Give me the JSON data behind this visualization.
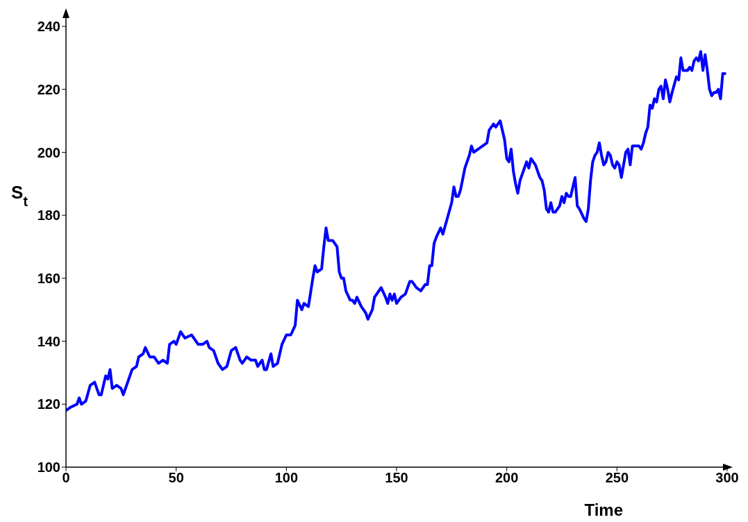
{
  "chart_data": {
    "type": "line",
    "xlabel": "Time",
    "ylabel": "S$_{t}$",
    "xlim": [
      0,
      300
    ],
    "xticks": [
      0,
      50,
      100,
      150,
      200,
      250,
      300
    ],
    "ylim": [
      100,
      240
    ],
    "yticks": [
      100,
      120,
      140,
      160,
      180,
      200,
      220,
      240
    ],
    "grid": false,
    "legend": false,
    "marker": "none",
    "line_style": "solid",
    "series": [
      {
        "color": "#0000ff",
        "x": [
          0,
          2,
          5,
          6,
          7,
          9,
          11,
          13,
          15,
          16,
          18,
          19,
          20,
          21,
          23,
          25,
          26,
          28,
          30,
          32,
          33,
          35,
          36,
          38,
          40,
          42,
          44,
          46,
          47,
          49,
          50,
          51,
          52,
          54,
          57,
          60,
          62,
          64,
          65,
          67,
          69,
          71,
          73,
          75,
          77,
          79,
          80,
          82,
          84,
          86,
          87,
          89,
          90,
          91,
          93,
          94,
          96,
          98,
          100,
          102,
          104,
          105,
          107,
          108,
          110,
          112,
          113,
          114,
          116,
          117,
          118,
          119,
          121,
          123,
          124,
          125,
          126,
          127,
          129,
          130,
          131,
          132,
          134,
          136,
          137,
          139,
          140,
          142,
          143,
          145,
          146,
          147,
          148,
          149,
          150,
          152,
          154,
          156,
          157,
          159,
          161,
          163,
          164,
          165,
          166,
          167,
          168,
          170,
          171,
          173,
          175,
          176,
          177,
          178,
          179,
          181,
          183,
          184,
          185,
          187,
          189,
          191,
          192,
          194,
          195,
          197,
          198,
          199,
          200,
          201,
          202,
          203,
          204,
          205,
          206,
          208,
          209,
          210,
          211,
          213,
          214,
          215,
          216,
          217,
          218,
          219,
          220,
          221,
          222,
          224,
          225,
          226,
          227,
          228,
          229,
          230,
          231,
          232,
          233,
          235,
          236,
          237,
          238,
          239,
          240,
          241,
          242,
          243,
          244,
          245,
          246,
          247,
          248,
          249,
          250,
          251,
          252,
          253,
          254,
          255,
          256,
          257,
          258,
          260,
          261,
          262,
          263,
          264,
          265,
          266,
          267,
          268,
          269,
          270,
          271,
          272,
          273,
          274,
          275,
          277,
          278,
          279,
          280,
          282,
          283,
          284,
          285,
          286,
          287,
          288,
          289,
          290,
          291,
          292,
          293,
          294,
          295,
          296,
          297,
          298,
          299
        ],
        "values": [
          118,
          119,
          120,
          122,
          120,
          121,
          126,
          127,
          123,
          123,
          129,
          128,
          131,
          125,
          126,
          125,
          123,
          127,
          131,
          132,
          135,
          136,
          138,
          135,
          135,
          133,
          134,
          133,
          139,
          140,
          139,
          141,
          143,
          141,
          142,
          139,
          139,
          140,
          138,
          137,
          133,
          131,
          132,
          137,
          138,
          134,
          133,
          135,
          134,
          134,
          132,
          134,
          131,
          131,
          136,
          132,
          133,
          139,
          142,
          142,
          145,
          153,
          150,
          152,
          151,
          160,
          164,
          162,
          163,
          170,
          176,
          172,
          172,
          170,
          162,
          160,
          160,
          156,
          153,
          153,
          152,
          154,
          151,
          149,
          147,
          150,
          154,
          156,
          157,
          154,
          152,
          155,
          153,
          155,
          152,
          154,
          155,
          159,
          159,
          157,
          156,
          158,
          158,
          164,
          164,
          171,
          173,
          176,
          174,
          179,
          184,
          189,
          186,
          186,
          188,
          195,
          199,
          202,
          200,
          201,
          202,
          203,
          207,
          209,
          208,
          210,
          207,
          204,
          198,
          197,
          201,
          194,
          190,
          187,
          191,
          195,
          197,
          195,
          198,
          196,
          194,
          192,
          191,
          188,
          182,
          181,
          184,
          181,
          181,
          183,
          186,
          184,
          187,
          186,
          186,
          189,
          192,
          183,
          182,
          179,
          178,
          182,
          191,
          197,
          199,
          200,
          203,
          199,
          196,
          197,
          200,
          199,
          196,
          195,
          197,
          196,
          192,
          196,
          200,
          201,
          196,
          202,
          202,
          202,
          201,
          203,
          206,
          208,
          215,
          214,
          217,
          216,
          220,
          221,
          217,
          223,
          220,
          216,
          219,
          224,
          223,
          230,
          226,
          226,
          227,
          226,
          229,
          230,
          229,
          232,
          226,
          231,
          226,
          220,
          218,
          219,
          219,
          220,
          217,
          225,
          225
        ]
      }
    ]
  }
}
